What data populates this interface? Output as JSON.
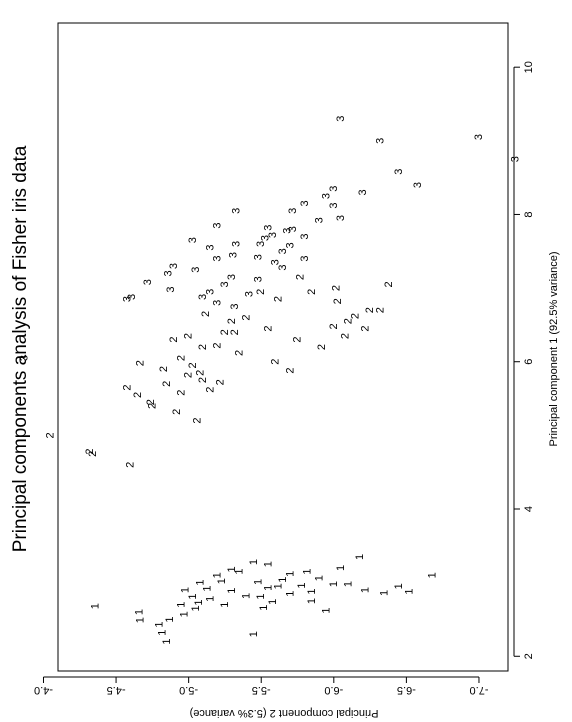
{
  "chart_data": {
    "type": "scatter",
    "title": "Principal components analysis of Fisher iris data",
    "xlabel": "Principal component 1 (92.5% variance)",
    "ylabel": "Principal component 2 (5.3% variance)",
    "xlim": [
      1.8,
      10.6
    ],
    "ylim": [
      -4.1,
      -7.2
    ],
    "x_ticks": [
      2,
      4,
      6,
      8,
      10
    ],
    "y_ticks": [
      -4.0,
      -4.5,
      -5.0,
      -5.5,
      -6.0,
      -6.5,
      -7.0
    ],
    "y_tick_labels": [
      "-4.0",
      "-4.5",
      "-5.0",
      "-5.5",
      "-6.0",
      "-6.5",
      "-7.0"
    ],
    "grid": false,
    "rotated": "figure rotated 90 degrees clockwise",
    "series": [
      {
        "name": "1",
        "marker": "1",
        "points": [
          [
            2.68,
            -4.36
          ],
          [
            2.32,
            -4.82
          ],
          [
            2.49,
            -4.67
          ],
          [
            2.6,
            -4.66
          ],
          [
            2.7,
            -4.95
          ],
          [
            2.81,
            -5.03
          ],
          [
            2.92,
            -5.13
          ],
          [
            3.02,
            -5.23
          ],
          [
            3.15,
            -5.35
          ],
          [
            3.28,
            -5.45
          ],
          [
            2.95,
            -5.62
          ],
          [
            2.82,
            -5.4
          ],
          [
            2.73,
            -5.07
          ],
          [
            2.9,
            -4.98
          ],
          [
            3.0,
            -5.08
          ],
          [
            3.1,
            -5.2
          ],
          [
            2.66,
            -5.52
          ],
          [
            2.74,
            -5.58
          ],
          [
            2.85,
            -5.7
          ],
          [
            2.96,
            -5.78
          ],
          [
            3.06,
            -5.9
          ],
          [
            3.2,
            -6.05
          ],
          [
            3.35,
            -6.18
          ],
          [
            3.12,
            -5.7
          ],
          [
            3.01,
            -5.48
          ],
          [
            2.89,
            -5.3
          ],
          [
            2.78,
            -5.15
          ],
          [
            2.65,
            -5.05
          ],
          [
            2.57,
            -4.97
          ],
          [
            2.5,
            -4.87
          ],
          [
            2.43,
            -4.8
          ],
          [
            2.7,
            -5.25
          ],
          [
            2.81,
            -5.5
          ],
          [
            2.93,
            -5.55
          ],
          [
            3.04,
            -5.65
          ],
          [
            3.15,
            -5.82
          ],
          [
            2.88,
            -5.85
          ],
          [
            2.98,
            -6.0
          ],
          [
            2.9,
            -6.22
          ],
          [
            2.95,
            -6.45
          ],
          [
            2.88,
            -6.52
          ],
          [
            3.1,
            -6.68
          ],
          [
            2.98,
            -6.1
          ],
          [
            3.18,
            -5.3
          ],
          [
            3.25,
            -5.55
          ],
          [
            2.62,
            -5.95
          ],
          [
            2.75,
            -5.85
          ],
          [
            2.86,
            -6.35
          ],
          [
            2.3,
            -5.45
          ],
          [
            2.2,
            -4.85
          ]
        ]
      },
      {
        "name": "2",
        "marker": "2",
        "points": [
          [
            5.0,
            -4.05
          ],
          [
            4.78,
            -4.32
          ],
          [
            4.75,
            -4.34
          ],
          [
            4.6,
            -4.6
          ],
          [
            5.2,
            -5.06
          ],
          [
            5.32,
            -4.92
          ],
          [
            5.4,
            -4.75
          ],
          [
            5.45,
            -4.74
          ],
          [
            5.55,
            -4.65
          ],
          [
            5.65,
            -4.58
          ],
          [
            5.7,
            -4.85
          ],
          [
            5.58,
            -4.95
          ],
          [
            5.62,
            -5.15
          ],
          [
            5.75,
            -5.1
          ],
          [
            5.85,
            -5.08
          ],
          [
            5.72,
            -5.22
          ],
          [
            5.82,
            -5.0
          ],
          [
            5.95,
            -5.03
          ],
          [
            5.9,
            -4.83
          ],
          [
            5.98,
            -4.67
          ],
          [
            6.05,
            -4.95
          ],
          [
            6.2,
            -5.1
          ],
          [
            6.3,
            -4.9
          ],
          [
            6.35,
            -5.0
          ],
          [
            6.22,
            -5.2
          ],
          [
            6.4,
            -5.25
          ],
          [
            6.55,
            -5.3
          ],
          [
            6.6,
            -5.4
          ],
          [
            6.45,
            -5.55
          ],
          [
            6.3,
            -5.75
          ],
          [
            6.2,
            -5.92
          ],
          [
            6.48,
            -6.0
          ],
          [
            6.55,
            -6.1
          ],
          [
            6.62,
            -6.15
          ],
          [
            6.7,
            -6.25
          ],
          [
            6.82,
            -6.03
          ],
          [
            7.0,
            -6.02
          ],
          [
            6.85,
            -5.62
          ],
          [
            6.95,
            -5.5
          ],
          [
            7.15,
            -5.77
          ],
          [
            7.05,
            -6.38
          ],
          [
            6.4,
            -5.32
          ],
          [
            6.12,
            -5.35
          ],
          [
            6.0,
            -5.6
          ],
          [
            5.88,
            -5.7
          ],
          [
            6.35,
            -6.08
          ],
          [
            6.45,
            -6.22
          ],
          [
            6.7,
            -6.32
          ],
          [
            6.65,
            -5.12
          ],
          [
            6.95,
            -5.85
          ]
        ]
      },
      {
        "name": "3",
        "marker": "3",
        "points": [
          [
            6.05,
            -3.87
          ],
          [
            7.3,
            -4.9
          ],
          [
            6.85,
            -4.58
          ],
          [
            6.88,
            -4.61
          ],
          [
            7.08,
            -4.72
          ],
          [
            6.98,
            -4.88
          ],
          [
            7.2,
            -4.86
          ],
          [
            7.25,
            -5.05
          ],
          [
            7.4,
            -5.2
          ],
          [
            7.45,
            -5.31
          ],
          [
            7.6,
            -5.5
          ],
          [
            7.68,
            -5.53
          ],
          [
            7.72,
            -5.58
          ],
          [
            7.8,
            -5.72
          ],
          [
            7.82,
            -5.55
          ],
          [
            7.92,
            -5.9
          ],
          [
            8.05,
            -5.72
          ],
          [
            8.12,
            -6.0
          ],
          [
            8.3,
            -6.2
          ],
          [
            8.58,
            -6.45
          ],
          [
            8.4,
            -6.58
          ],
          [
            9.0,
            -6.32
          ],
          [
            9.3,
            -6.05
          ],
          [
            9.05,
            -7.0
          ],
          [
            8.75,
            -7.25
          ],
          [
            6.95,
            -5.15
          ],
          [
            7.05,
            -5.25
          ],
          [
            7.15,
            -5.3
          ],
          [
            6.88,
            -5.1
          ],
          [
            6.75,
            -5.32
          ],
          [
            6.8,
            -5.2
          ],
          [
            7.35,
            -5.6
          ],
          [
            7.5,
            -5.65
          ],
          [
            7.58,
            -5.7
          ],
          [
            7.7,
            -5.8
          ],
          [
            7.95,
            -6.05
          ],
          [
            8.15,
            -5.8
          ],
          [
            8.25,
            -5.95
          ],
          [
            8.35,
            -6.0
          ],
          [
            7.85,
            -5.2
          ],
          [
            8.05,
            -5.33
          ],
          [
            7.65,
            -5.03
          ],
          [
            7.55,
            -5.15
          ],
          [
            7.42,
            -5.48
          ],
          [
            7.6,
            -5.33
          ],
          [
            7.78,
            -5.68
          ],
          [
            7.4,
            -5.8
          ],
          [
            7.28,
            -5.65
          ],
          [
            6.92,
            -5.42
          ],
          [
            7.12,
            -5.48
          ]
        ]
      }
    ]
  }
}
